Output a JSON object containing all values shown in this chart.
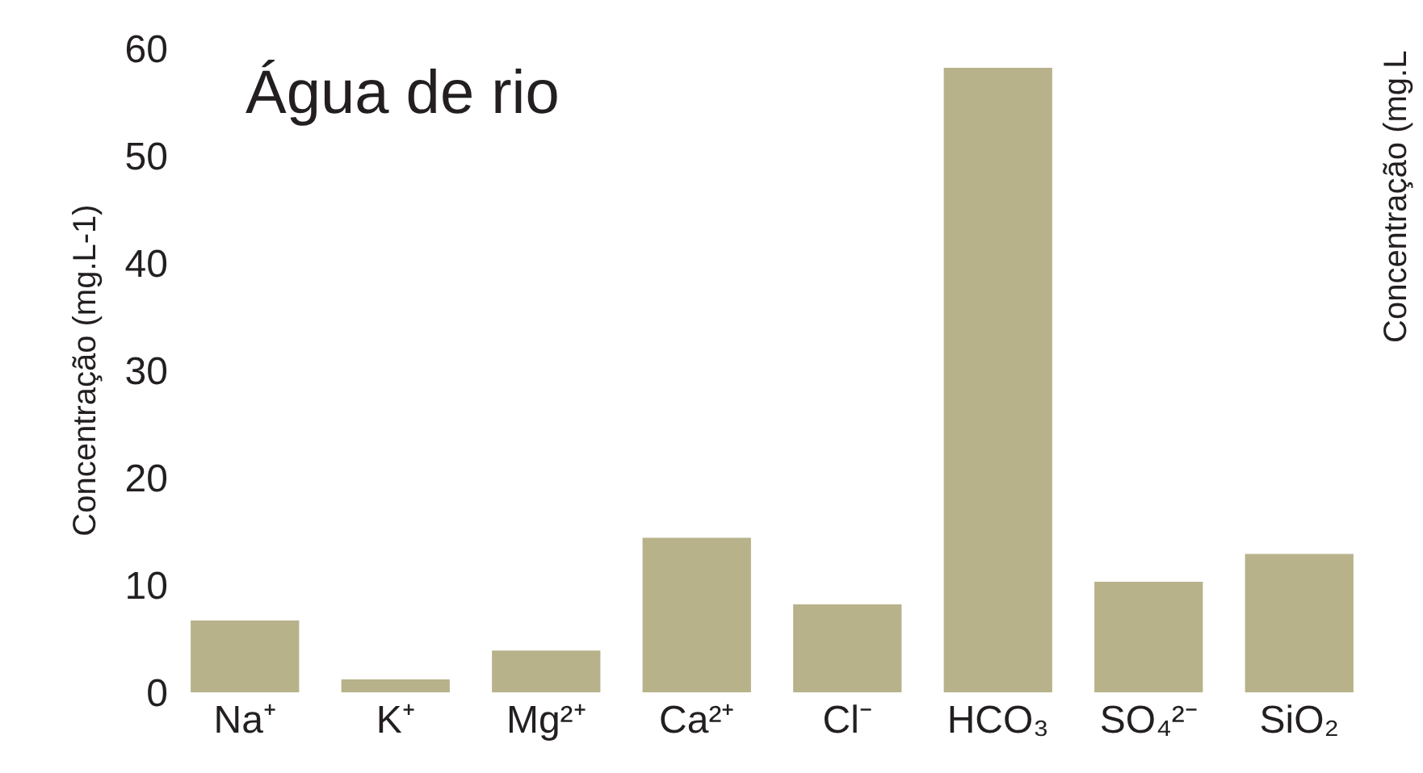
{
  "chart_data": {
    "type": "bar",
    "title": "Água de rio",
    "ylabel": "Concentração (mg.L-1)",
    "categories": [
      "Na⁺",
      "K⁺",
      "Mg²⁺",
      "Ca²⁺",
      "Cl⁻",
      "HCO₃",
      "SO₄²⁻",
      "SiO₂"
    ],
    "values": [
      6.7,
      1.2,
      3.9,
      14.4,
      8.2,
      58.2,
      10.3,
      12.9
    ],
    "color": "#b8b28b",
    "ylim": [
      0,
      60
    ],
    "yticks": [
      0,
      10,
      20,
      30,
      40,
      50,
      60
    ],
    "legend": false,
    "annotations": [
      "Concentração (mg.L"
    ]
  }
}
